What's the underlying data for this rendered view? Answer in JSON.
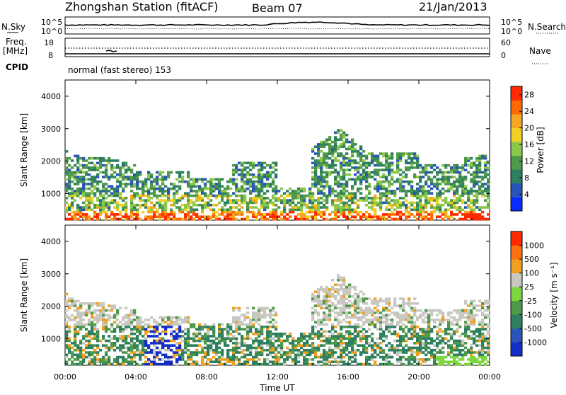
{
  "header": {
    "station": "Zhongshan Station (fitACF)",
    "beam": "Beam 07",
    "date": "21/Jan/2013"
  },
  "sky_panel": {
    "left_label": "N.Sky",
    "right_label": "N.Search",
    "top_tick": "10^5",
    "bottom_tick": "10^0"
  },
  "freq_panel": {
    "left_label_line1": "Freq.",
    "left_label_line2": "[MHz]",
    "right_label": "Nave",
    "left_ticks": [
      "18",
      "8"
    ],
    "right_ticks": [
      "60",
      "0"
    ]
  },
  "cpid_panel": {
    "label": "CPID",
    "text": "normal (fast stereo) 153"
  },
  "chart_data": [
    {
      "type": "heatmap",
      "name": "power",
      "ylabel": "Slant Range [km]",
      "ylim": [
        180,
        4500
      ],
      "yticks": [
        1000,
        2000,
        3000,
        4000
      ],
      "xlim": [
        0,
        24
      ],
      "colorbar": {
        "label": "Power [dB]",
        "range": [
          0,
          30
        ],
        "tick_values": [
          4,
          8,
          12,
          16,
          20,
          24,
          28
        ],
        "tick_labels": [
          "4",
          "8",
          "12",
          "16",
          "20",
          "24",
          "28"
        ],
        "colors": [
          "#0a2dff",
          "#2a55b8",
          "#2e8060",
          "#4f9a4a",
          "#8cc84b",
          "#f0d020",
          "#f5a623",
          "#ff6a00",
          "#ff2a00"
        ]
      }
    },
    {
      "type": "heatmap",
      "name": "velocity",
      "ylabel": "Slant Range [km]",
      "ylim": [
        180,
        4500
      ],
      "yticks": [
        1000,
        2000,
        3000,
        4000
      ],
      "xlim": [
        0,
        24
      ],
      "colorbar": {
        "label": "Velocity [m s⁻¹]",
        "tick_labels": [
          "1000",
          "500",
          "100",
          "25",
          "-25",
          "-100",
          "-500",
          "-1000"
        ],
        "colors": [
          "#1530c8",
          "#2a55b8",
          "#2e8060",
          "#4f9a4a",
          "#7cd640",
          "#c8c8c0",
          "#f0a020",
          "#ff7010",
          "#ff2a00"
        ]
      }
    }
  ],
  "x_axis": {
    "label": "Time UT",
    "ticks": [
      "00:00",
      "04:00",
      "08:00",
      "12:00",
      "16:00",
      "20:00",
      "00:00"
    ]
  }
}
